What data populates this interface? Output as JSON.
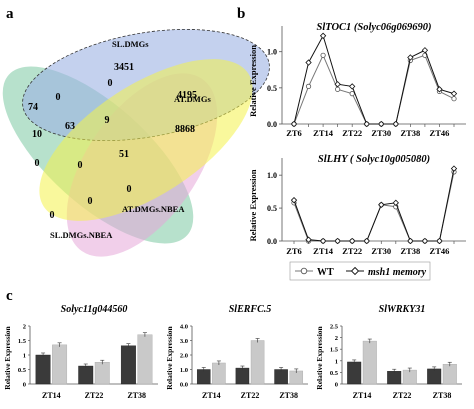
{
  "panels": {
    "a": "a",
    "b": "b",
    "c": "c"
  },
  "venn": {
    "sets": [
      {
        "name": "SL.DMGs",
        "color": "#9db3e3"
      },
      {
        "name": "AT.DMGs",
        "color": "#f4f24a"
      },
      {
        "name": "AT.DMGs.NBEA",
        "color": "#e6a8d8"
      },
      {
        "name": "SL.DMGs.NBEA",
        "color": "#7cc9a2"
      }
    ],
    "counts": [
      "3451",
      "0",
      "4195",
      "8868",
      "74",
      "0",
      "9",
      "10",
      "63",
      "51",
      "0",
      "0",
      "0",
      "0",
      "0"
    ]
  },
  "chart_data": [
    {
      "type": "line",
      "title": "SlTOC1 (Solyc06g069690)",
      "ylabel": "Relative Expression",
      "categories": [
        "ZT6",
        "ZT14",
        "ZT22",
        "ZT30",
        "ZT38",
        "ZT46"
      ],
      "x": [
        6,
        10,
        14,
        18,
        22,
        26,
        30,
        34,
        38,
        42,
        46,
        50
      ],
      "ylim": [
        0,
        1.3
      ],
      "yticks": [
        "0.0",
        "0.5",
        "1.0"
      ],
      "series": [
        {
          "name": "WT",
          "values": [
            0.0,
            0.52,
            0.95,
            0.48,
            0.42,
            0.0,
            0.0,
            0.0,
            0.88,
            0.95,
            0.45,
            0.35
          ]
        },
        {
          "name": "msh1 memory",
          "values": [
            0.0,
            0.85,
            1.22,
            0.55,
            0.52,
            0.0,
            0.0,
            0.0,
            0.92,
            1.02,
            0.48,
            0.42
          ]
        }
      ]
    },
    {
      "type": "line",
      "title": "SlLHY ( Solyc10g005080)",
      "ylabel": "Relative Expression",
      "categories": [
        "ZT6",
        "ZT14",
        "ZT22",
        "ZT30",
        "ZT38",
        "ZT46"
      ],
      "x": [
        6,
        10,
        14,
        18,
        22,
        26,
        30,
        34,
        38,
        42,
        46,
        50
      ],
      "ylim": [
        0,
        1.2
      ],
      "yticks": [
        "0.0",
        "0.5",
        "1.0"
      ],
      "series": [
        {
          "name": "WT",
          "values": [
            0.58,
            0.0,
            0.0,
            0.0,
            0.0,
            0.0,
            0.55,
            0.52,
            0.0,
            0.0,
            0.0,
            1.05
          ]
        },
        {
          "name": "msh1 memory",
          "values": [
            0.62,
            0.02,
            0.0,
            0.0,
            0.0,
            0.0,
            0.55,
            0.58,
            0.0,
            0.0,
            0.0,
            1.1
          ]
        }
      ]
    },
    {
      "type": "bar",
      "title": "Solyc11g044560",
      "ylabel": "Relative Expression",
      "categories": [
        "ZT14",
        "ZT22",
        "ZT38"
      ],
      "ylim": [
        0,
        2
      ],
      "yticks": [
        "0",
        "0.5",
        "1",
        "1.5",
        "2"
      ],
      "series": [
        {
          "name": "WT",
          "values": [
            1.0,
            0.62,
            1.32
          ]
        },
        {
          "name": "msh1 memory",
          "values": [
            1.35,
            0.75,
            1.7
          ]
        }
      ]
    },
    {
      "type": "bar",
      "title": "SlERFC.5",
      "ylabel": "Relative Expression",
      "categories": [
        "ZT14",
        "ZT22",
        "ZT38"
      ],
      "ylim": [
        0,
        4
      ],
      "yticks": [
        "0.0",
        "1.0",
        "2.0",
        "3.0",
        "4.0"
      ],
      "series": [
        {
          "name": "WT",
          "values": [
            1.0,
            1.1,
            1.0
          ]
        },
        {
          "name": "msh1 memory",
          "values": [
            1.45,
            3.0,
            0.9
          ]
        }
      ]
    },
    {
      "type": "bar",
      "title": "SlWRKY31",
      "ylabel": "Relative Expression",
      "categories": [
        "ZT14",
        "ZT22",
        "ZT38"
      ],
      "ylim": [
        0,
        2.5
      ],
      "yticks": [
        "0",
        "0.5",
        "1",
        "1.5",
        "2",
        "2.5"
      ],
      "series": [
        {
          "name": "WT",
          "values": [
            0.95,
            0.55,
            0.65
          ]
        },
        {
          "name": "msh1 memory",
          "values": [
            1.85,
            0.6,
            0.85
          ]
        }
      ]
    }
  ],
  "legend": {
    "items": [
      {
        "name": "WT",
        "marker": "circle"
      },
      {
        "name": "msh1 memory",
        "marker": "diamond"
      }
    ]
  },
  "colors": {
    "line_wt": "#777777",
    "line_msh1": "#111111",
    "bar_wt": "#3a3a3a",
    "bar_msh1": "#c9c9c9",
    "axis": "#555555"
  }
}
